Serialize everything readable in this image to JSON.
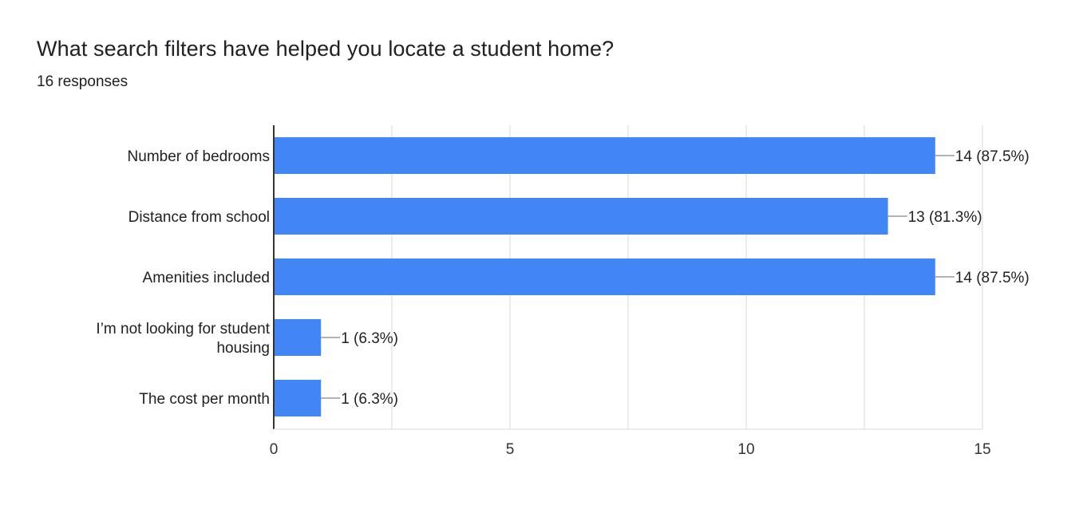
{
  "header": {
    "title": "What search filters have helped you locate a student home?",
    "responses": "16 responses"
  },
  "colors": {
    "bar": "#4285f4",
    "grid": "#e6e6e6",
    "axis": "#333333",
    "leader": "#999999"
  },
  "chart_data": {
    "type": "bar",
    "orientation": "horizontal",
    "title": "What search filters have helped you locate a student home?",
    "subtitle": "16 responses",
    "categories": [
      [
        "Number of bedrooms"
      ],
      [
        "Distance from school"
      ],
      [
        "Amenities included"
      ],
      [
        "I’m not looking for student",
        "housing"
      ],
      [
        "The cost per month"
      ]
    ],
    "values": [
      14,
      13,
      14,
      1,
      1
    ],
    "data_labels": [
      "14 (87.5%)",
      "13 (81.3%)",
      "14 (87.5%)",
      "1 (6.3%)",
      "1 (6.3%)"
    ],
    "xlim": [
      0,
      15
    ],
    "xticks": [
      0,
      5,
      10,
      15
    ],
    "xtick_labels": [
      "0",
      "5",
      "10",
      "15"
    ],
    "grid": true,
    "xlabel": "",
    "ylabel": ""
  }
}
